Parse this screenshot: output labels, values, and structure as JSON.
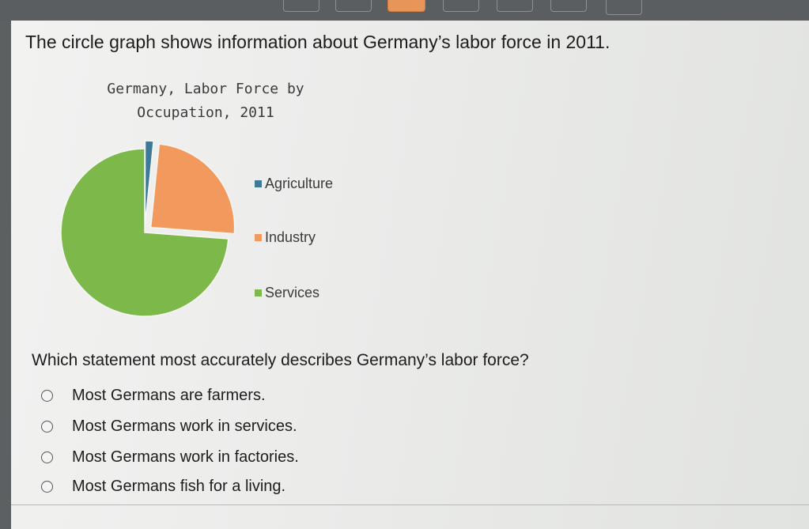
{
  "prompt": "The circle graph shows information about Germany’s labor force in 2011.",
  "chart_data": {
    "type": "pie",
    "title_lines": [
      "Germany, Labor Force by",
      "Occupation, 2011"
    ],
    "categories": [
      "Agriculture",
      "Industry",
      "Services"
    ],
    "values": [
      1.6,
      24.6,
      73.8
    ],
    "colors": [
      "#3e7a98",
      "#f29a5d",
      "#7db84a"
    ],
    "legend_position": "right"
  },
  "question": "Which statement most accurately describes Germany’s labor force?",
  "options": [
    {
      "label": "Most Germans are farmers."
    },
    {
      "label": "Most Germans work in services."
    },
    {
      "label": "Most Germans work in factories."
    },
    {
      "label": "Most Germans fish for a living."
    }
  ]
}
